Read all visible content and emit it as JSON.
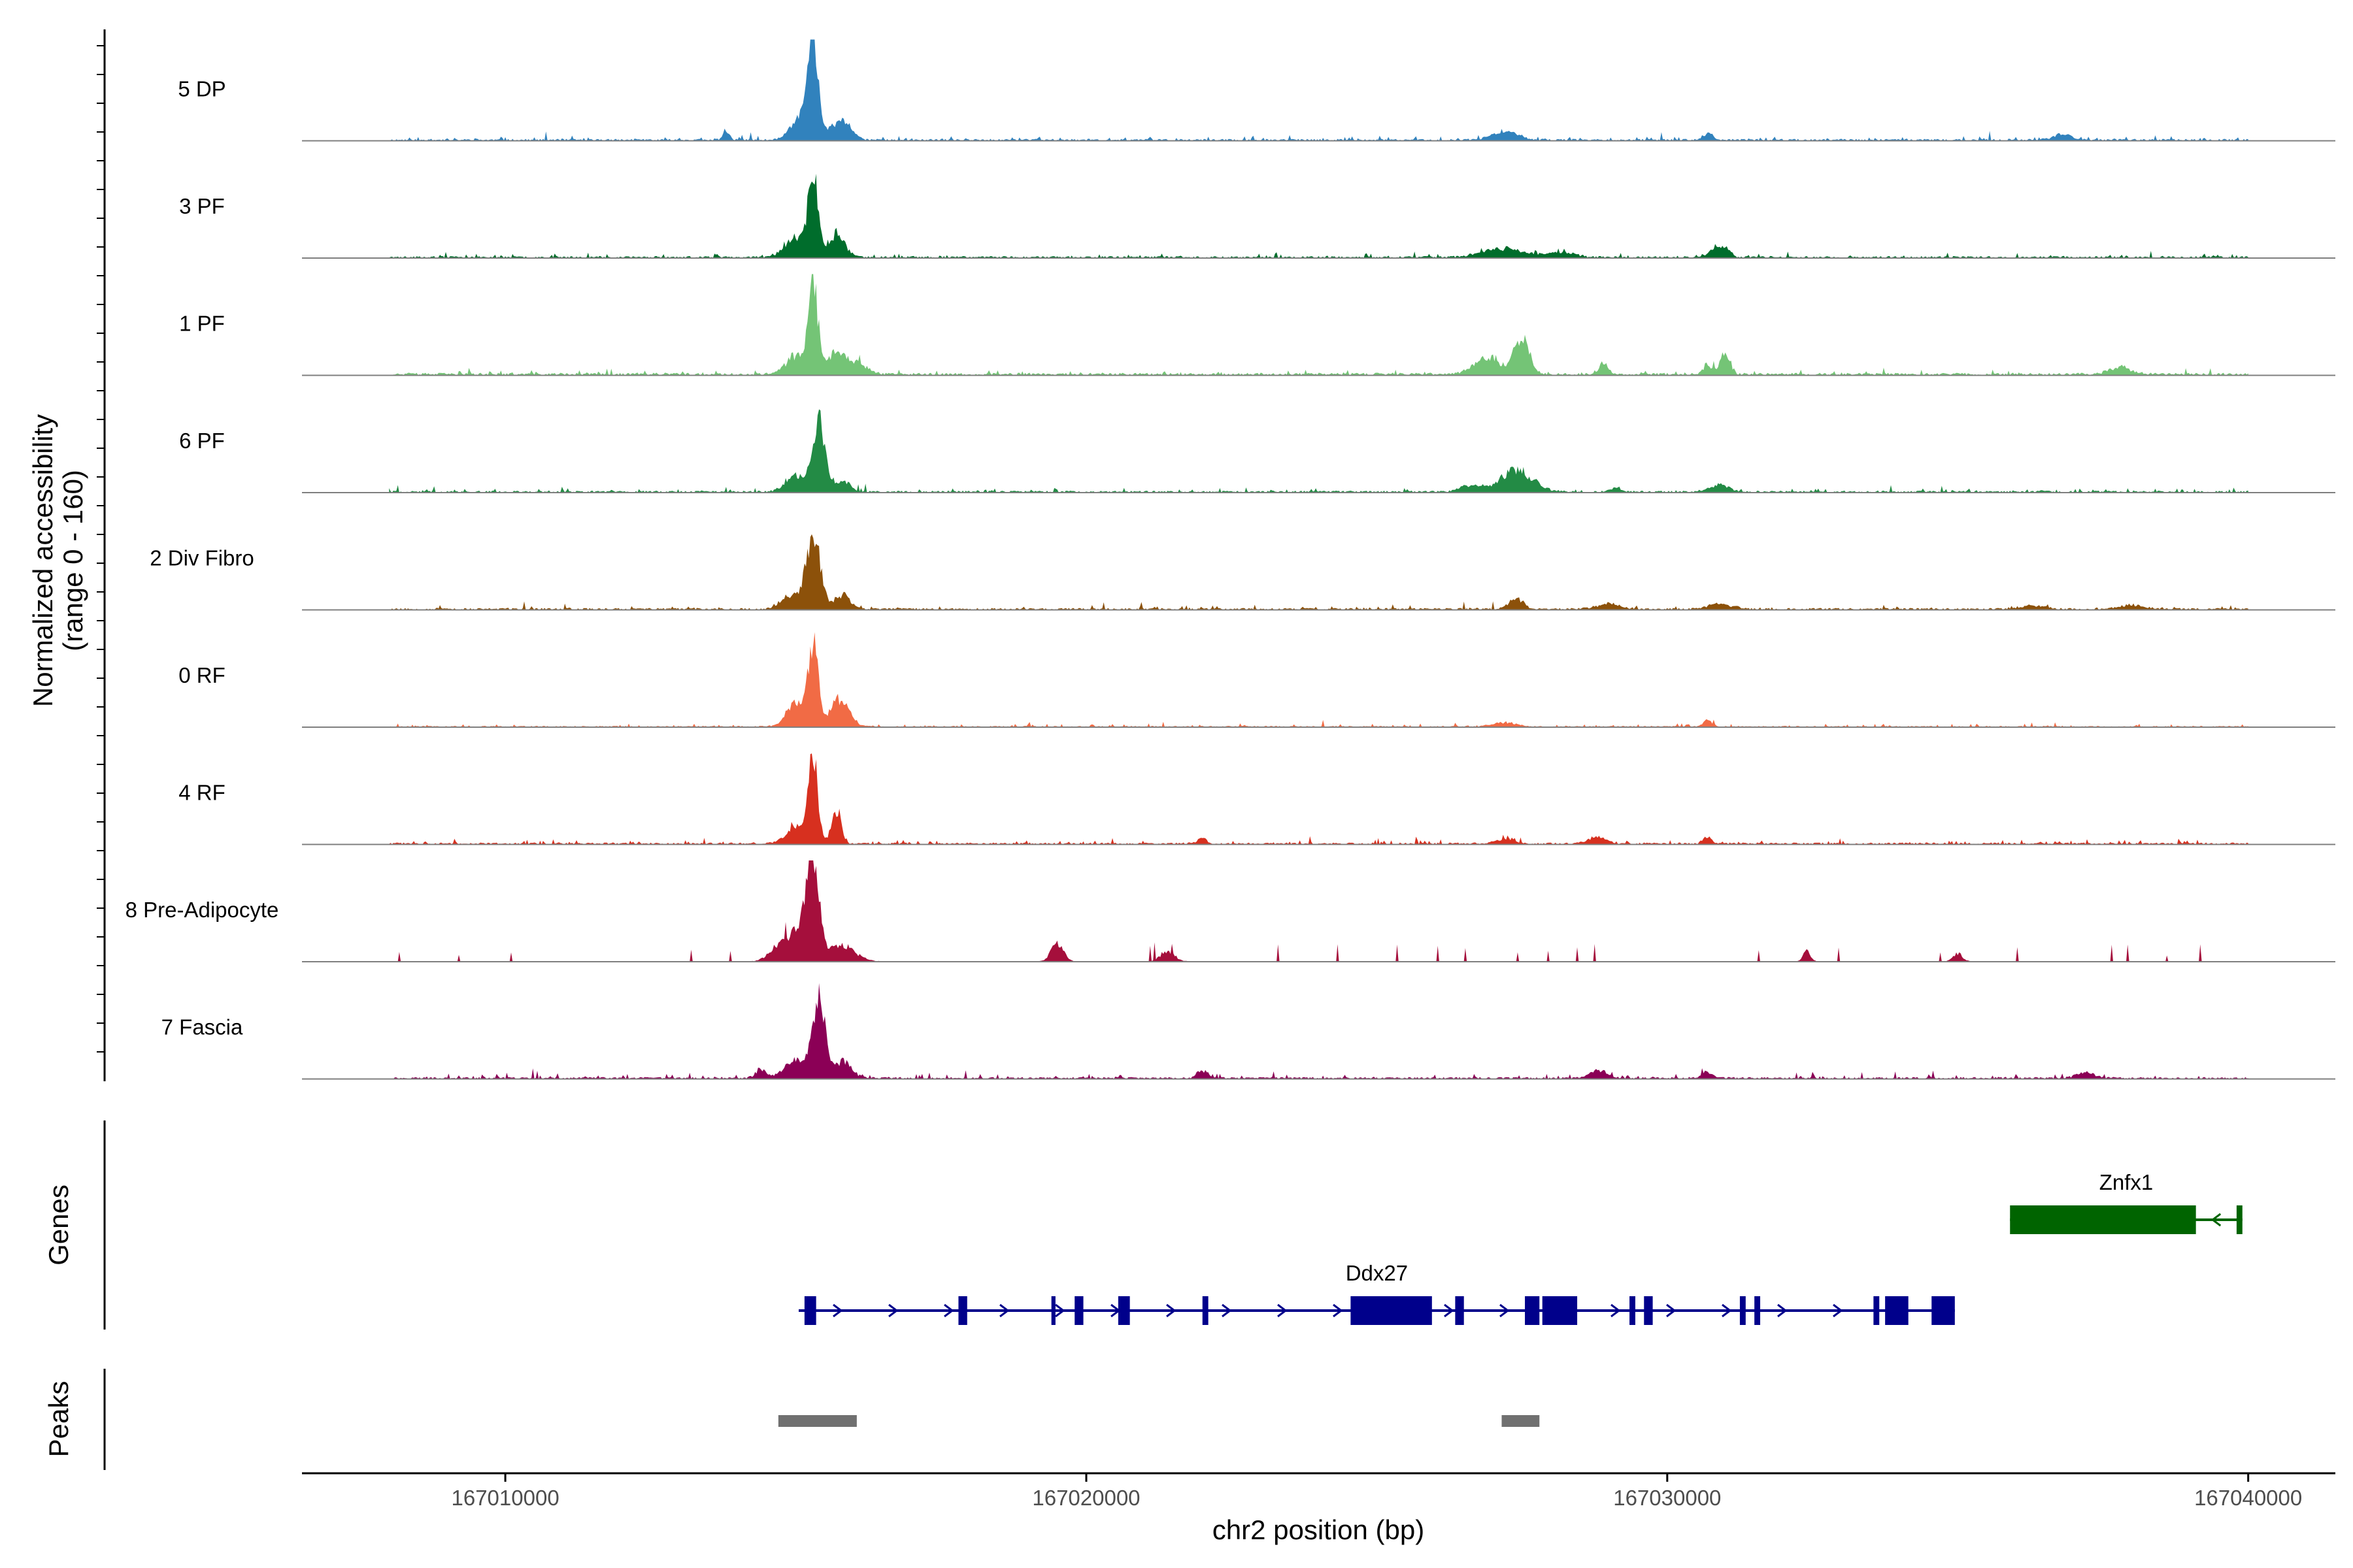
{
  "chart_data": {
    "type": "area",
    "title": "",
    "ylabel_line1": "Normalized accessibility",
    "ylabel_line2": "(range 0 - 160)",
    "xlabel": "chr2 position (bp)",
    "xlim": [
      167006500,
      167041500
    ],
    "xticks": [
      167010000,
      167020000,
      167030000,
      167040000
    ],
    "xtick_labels": [
      "167010000",
      "167020000",
      "167030000",
      "167040000"
    ],
    "track_domain": [
      167008000,
      167040000
    ],
    "ylim": [
      0,
      160
    ],
    "tracks": [
      {
        "name": "5 DP",
        "color": "#3182bd",
        "baseline": 1.5,
        "noise": 2.5,
        "seed": 11,
        "peaks": [
          [
            167015300,
            70,
            90
          ],
          [
            167015100,
            18,
            170
          ],
          [
            167015700,
            12,
            130
          ],
          [
            167015900,
            9,
            120
          ],
          [
            167013800,
            6,
            60
          ],
          [
            167027200,
            6,
            220
          ],
          [
            167030700,
            5,
            80
          ],
          [
            167036800,
            4,
            160
          ]
        ]
      },
      {
        "name": "3 PF",
        "color": "#006d2c",
        "baseline": 1.5,
        "noise": 2.5,
        "seed": 23,
        "peaks": [
          [
            167015300,
            60,
            85
          ],
          [
            167015000,
            15,
            180
          ],
          [
            167015700,
            18,
            140
          ],
          [
            167027200,
            7,
            350
          ],
          [
            167028200,
            4,
            220
          ],
          [
            167030800,
            6,
            100
          ],
          [
            167031000,
            7,
            90
          ]
        ]
      },
      {
        "name": "1 PF",
        "color": "#74c476",
        "baseline": 2,
        "noise": 3,
        "seed": 37,
        "peaks": [
          [
            167015300,
            65,
            85
          ],
          [
            167015000,
            14,
            170
          ],
          [
            167015700,
            18,
            160
          ],
          [
            167016100,
            8,
            140
          ],
          [
            167027500,
            28,
            130
          ],
          [
            167026900,
            13,
            220
          ],
          [
            167028900,
            9,
            70
          ],
          [
            167031000,
            17,
            80
          ],
          [
            167030700,
            7,
            80
          ],
          [
            167037800,
            6,
            180
          ]
        ]
      },
      {
        "name": "6 PF",
        "color": "#238b45",
        "baseline": 1.5,
        "noise": 2.5,
        "seed": 41,
        "peaks": [
          [
            167015400,
            50,
            110
          ],
          [
            167015000,
            12,
            170
          ],
          [
            167015800,
            8,
            140
          ],
          [
            167027400,
            16,
            280
          ],
          [
            167026600,
            5,
            150
          ],
          [
            167030900,
            5,
            160
          ],
          [
            167029100,
            3,
            80
          ]
        ]
      },
      {
        "name": "2 Div Fibro",
        "color": "#8c510a",
        "baseline": 1.5,
        "noise": 2.5,
        "seed": 53,
        "peaks": [
          [
            167015300,
            58,
            120
          ],
          [
            167014900,
            11,
            150
          ],
          [
            167015800,
            11,
            130
          ],
          [
            167027400,
            8,
            120
          ],
          [
            167029000,
            4,
            200
          ],
          [
            167030900,
            4,
            200
          ],
          [
            167036300,
            3,
            200
          ],
          [
            167038000,
            3,
            200
          ]
        ]
      },
      {
        "name": "0 RF",
        "color": "#f16b45",
        "baseline": 1,
        "noise": 2,
        "seed": 61,
        "peaks": [
          [
            167015300,
            65,
            85
          ],
          [
            167015000,
            18,
            160
          ],
          [
            167015700,
            18,
            130
          ],
          [
            167015900,
            8,
            120
          ],
          [
            167030700,
            5,
            80
          ],
          [
            167027200,
            3,
            200
          ]
        ]
      },
      {
        "name": "4 RF",
        "color": "#d7301f",
        "baseline": 1.5,
        "noise": 2.5,
        "seed": 73,
        "peaks": [
          [
            167015300,
            70,
            80
          ],
          [
            167015000,
            13,
            170
          ],
          [
            167015700,
            26,
            80
          ],
          [
            167022000,
            5,
            70
          ],
          [
            167027200,
            4,
            150
          ],
          [
            167028800,
            5,
            160
          ],
          [
            167030700,
            5,
            80
          ]
        ]
      },
      {
        "name": "8 Pre-Adipocyte",
        "color": "#a50f3c",
        "baseline": 0.5,
        "noise": 10,
        "seed": 89,
        "sparse": true,
        "peaks": [
          [
            167015300,
            70,
            100
          ],
          [
            167015100,
            25,
            200
          ],
          [
            167014700,
            11,
            160
          ],
          [
            167015800,
            12,
            220
          ],
          [
            167019500,
            15,
            100
          ],
          [
            167021400,
            8,
            120
          ],
          [
            167032400,
            8,
            60
          ],
          [
            167035000,
            6,
            80
          ]
        ]
      },
      {
        "name": "7 Fascia",
        "color": "#8b0056",
        "baseline": 1.5,
        "noise": 3,
        "seed": 97,
        "peaks": [
          [
            167015400,
            55,
            110
          ],
          [
            167015000,
            15,
            180
          ],
          [
            167015800,
            13,
            150
          ],
          [
            167014400,
            6,
            100
          ],
          [
            167022000,
            6,
            90
          ],
          [
            167028800,
            6,
            150
          ],
          [
            167030700,
            4,
            100
          ],
          [
            167037200,
            4,
            160
          ]
        ]
      }
    ],
    "genes_label": "Genes",
    "genes": [
      {
        "name": "Znfx1",
        "color": "#006400",
        "strand": "-",
        "start": 167035900,
        "end": 167039900,
        "exons": [
          [
            167035900,
            167039100
          ],
          [
            167039800,
            167039900
          ]
        ]
      },
      {
        "name": "Ddx27",
        "color": "#00008b",
        "strand": "+",
        "start": 167015050,
        "end": 167034950,
        "exons": [
          [
            167015150,
            167015350
          ],
          [
            167017800,
            167017950
          ],
          [
            167019400,
            167019470
          ],
          [
            167019800,
            167019950
          ],
          [
            167020550,
            167020750
          ],
          [
            167022000,
            167022100
          ],
          [
            167024550,
            167025950
          ],
          [
            167026350,
            167026500
          ],
          [
            167027550,
            167027800
          ],
          [
            167027850,
            167028450
          ],
          [
            167029350,
            167029450
          ],
          [
            167029600,
            167029750
          ],
          [
            167031250,
            167031350
          ],
          [
            167031500,
            167031600
          ],
          [
            167033550,
            167033650
          ],
          [
            167033750,
            167034150
          ],
          [
            167034550,
            167034950
          ]
        ]
      }
    ],
    "peaks_label": "Peaks",
    "peaks_color": "#707070",
    "peak_regions": [
      [
        167014700,
        167016050
      ],
      [
        167027150,
        167027800
      ]
    ]
  }
}
